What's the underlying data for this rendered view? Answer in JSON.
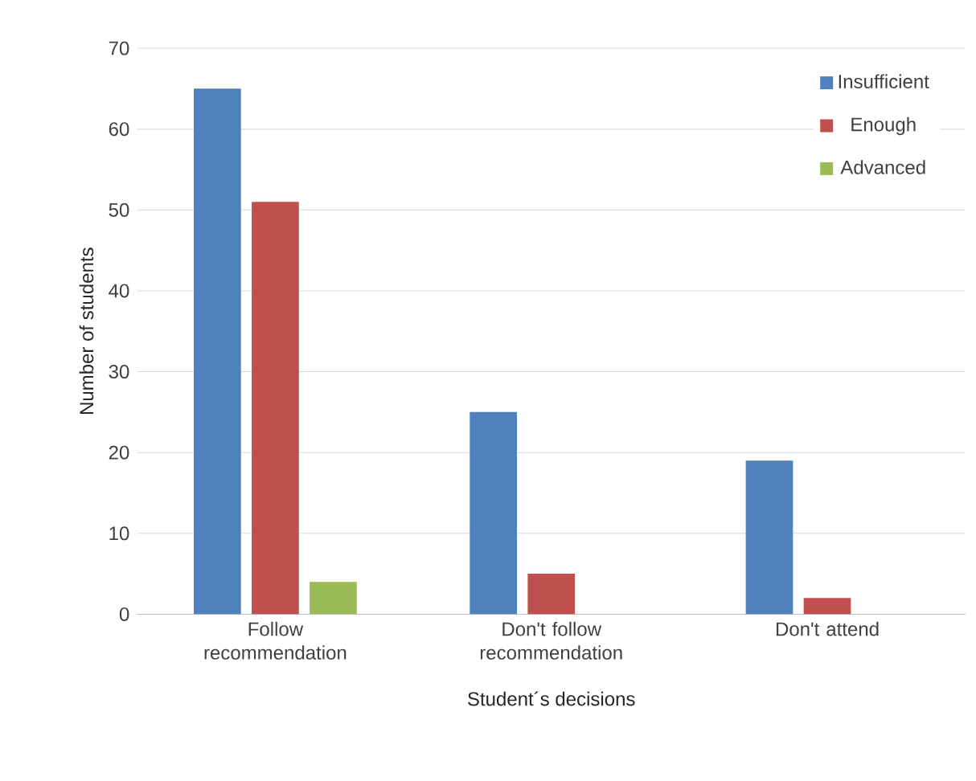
{
  "chart_data": {
    "type": "bar",
    "xlabel": "Student´s decisions",
    "ylabel": "Number of students",
    "categories": [
      "Follow recommendation",
      "Don't follow recommendation",
      "Don't attend"
    ],
    "series": [
      {
        "name": "Insufficient",
        "color": "#4f81bd",
        "values": [
          65,
          25,
          19
        ]
      },
      {
        "name": "Enough",
        "color": "#c0504d",
        "values": [
          51,
          5,
          2
        ]
      },
      {
        "name": "Advanced",
        "color": "#9bbb59",
        "values": [
          4,
          null,
          null
        ]
      }
    ],
    "ylim": [
      0,
      70
    ],
    "yticks": [
      0,
      10,
      20,
      30,
      40,
      50,
      60,
      70
    ],
    "grid": "y",
    "legend": "top right"
  }
}
